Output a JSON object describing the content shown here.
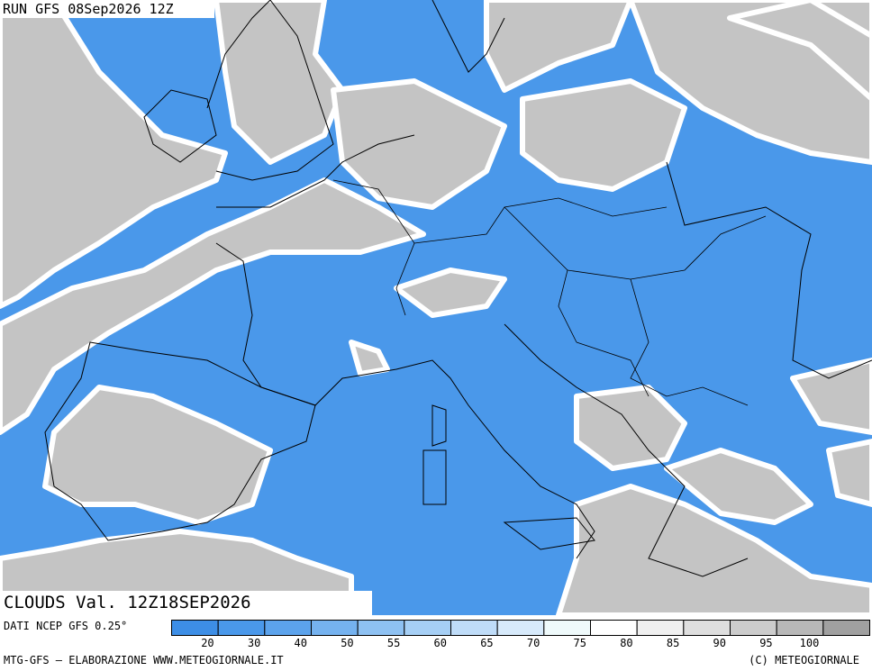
{
  "header": {
    "run": "RUN GFS 08Sep2026 12Z",
    "validity": "CLOUDS Val. 12Z18SEP2026"
  },
  "source": "DATI NCEP GFS 0.25°",
  "legend": {
    "colors": [
      "#3d8ee6",
      "#4a98ea",
      "#5ca3ec",
      "#75b2ef",
      "#8ec1f2",
      "#a6cff5",
      "#bfdcf8",
      "#d7eafb",
      "#effafb",
      "#ffffff",
      "#f0f0f0",
      "#dedede",
      "#cccccc",
      "#b8b8b8",
      "#a0a0a0"
    ],
    "labels": [
      20,
      30,
      40,
      50,
      55,
      60,
      65,
      70,
      75,
      80,
      85,
      90,
      95,
      100
    ]
  },
  "footer": {
    "credit": "MTG-GFS — ELABORAZIONE WWW.METEOGIORNALE.IT",
    "copyright": "(C) METEOGIORNALE"
  }
}
